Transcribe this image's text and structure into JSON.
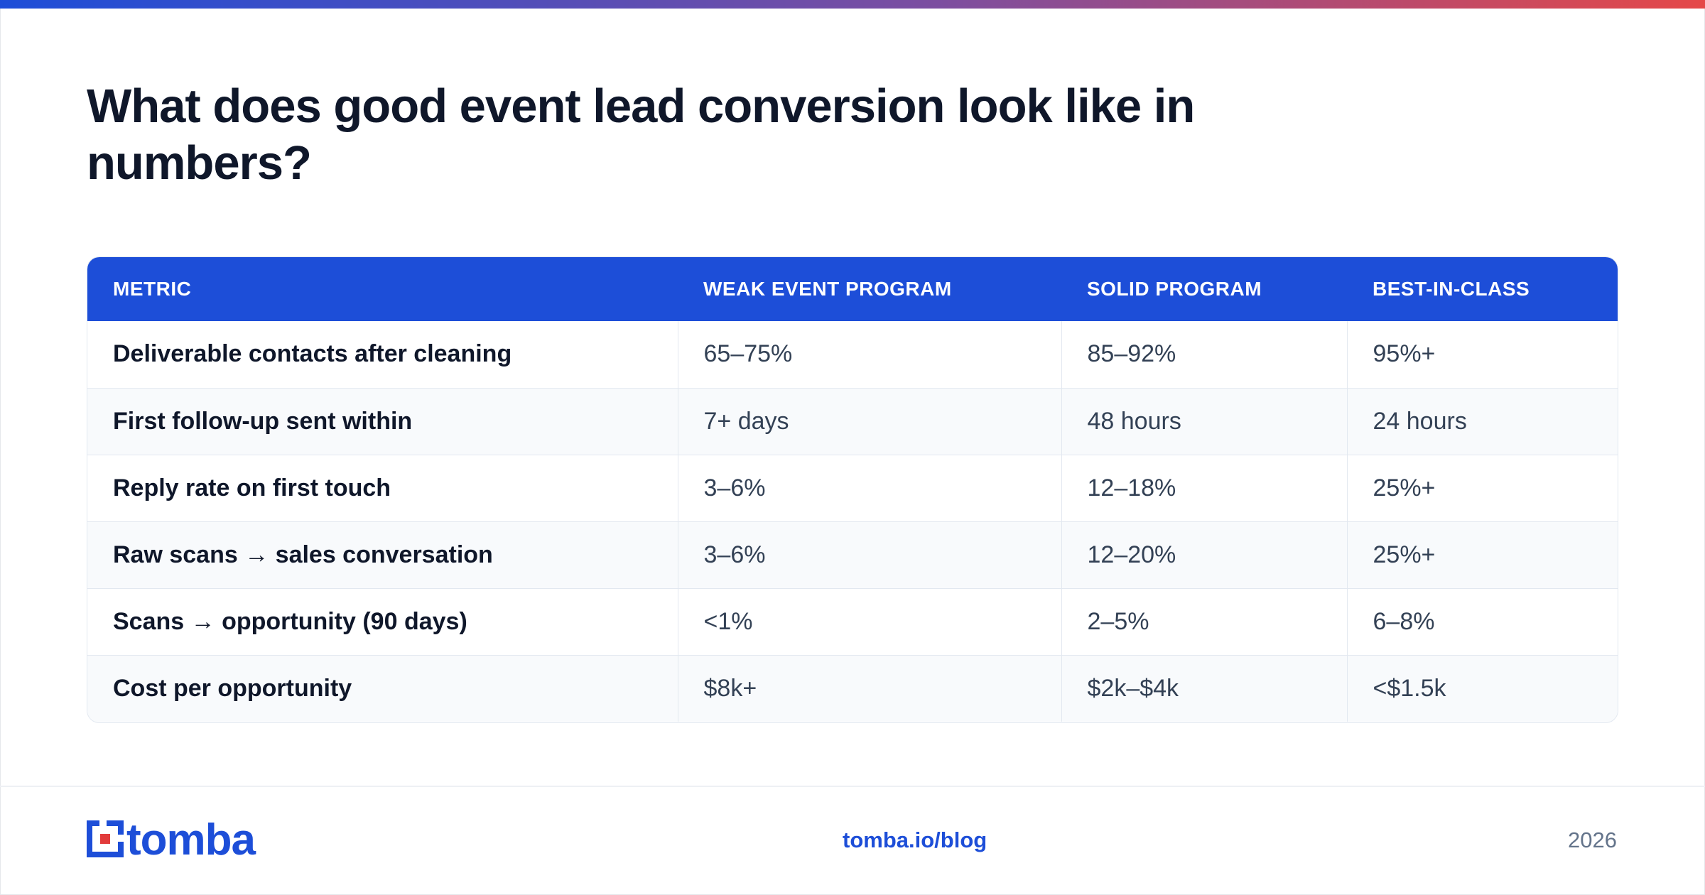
{
  "title": "What does good event lead conversion look like in numbers?",
  "table": {
    "headers": [
      "METRIC",
      "WEAK EVENT PROGRAM",
      "SOLID PROGRAM",
      "BEST-IN-CLASS"
    ],
    "rows": [
      [
        "Deliverable contacts after cleaning",
        "65–75%",
        "85–92%",
        "95%+"
      ],
      [
        "First follow-up sent within",
        "7+ days",
        "48 hours",
        "24 hours"
      ],
      [
        "Reply rate on first touch",
        "3–6%",
        "12–18%",
        "25%+"
      ],
      [
        "Raw scans → sales conversation",
        "3–6%",
        "12–20%",
        "25%+"
      ],
      [
        "Scans → opportunity (90 days)",
        "<1%",
        "2–5%",
        "6–8%"
      ],
      [
        "Cost per opportunity",
        "$8k+",
        "$2k–$4k",
        "<$1.5k"
      ]
    ]
  },
  "footer": {
    "logo_text": "tomba",
    "link": "tomba.io/blog",
    "year": "2026"
  },
  "colors": {
    "brand_blue": "#1d4ed8",
    "logo_red": "#e23b3b",
    "gradient_start": "#1d4ed8",
    "gradient_end": "#e54848"
  }
}
